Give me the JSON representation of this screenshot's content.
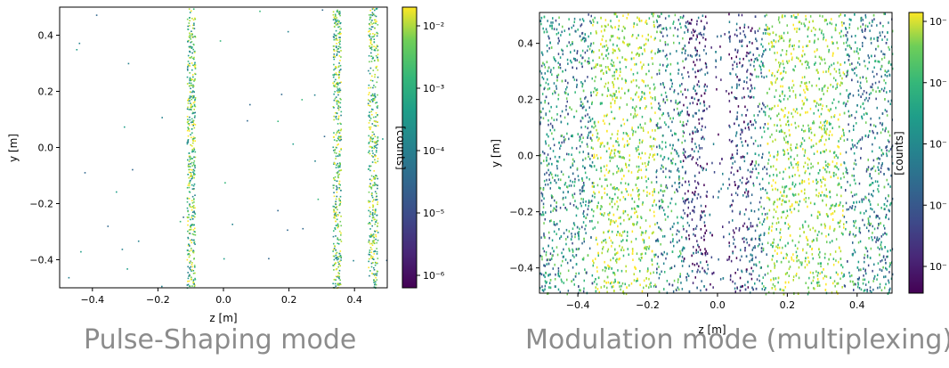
{
  "chart_data": [
    {
      "type": "heatmap",
      "caption": "Pulse-Shaping mode",
      "xlabel": "z [m]",
      "ylabel": "y [m]",
      "xlim": [
        -0.5,
        0.5
      ],
      "ylim": [
        -0.5,
        0.5
      ],
      "xticks": [
        "−0.4",
        "−0.2",
        "0.0",
        "0.2",
        "0.4"
      ],
      "xtick_values": [
        -0.4,
        -0.2,
        0.0,
        0.2,
        0.4
      ],
      "yticks": [
        "0.4",
        "0.2",
        "0.0",
        "−0.2",
        "−0.4"
      ],
      "ytick_values": [
        0.4,
        0.2,
        0.0,
        -0.2,
        -0.4
      ],
      "colorbar_label": "[counts]",
      "colorbar_ticks": [
        "10⁻²",
        "10⁻³",
        "10⁻⁴",
        "10⁻⁵",
        "10⁻⁶"
      ],
      "colorbar_exponents": [
        -2,
        -3,
        -4,
        -5,
        -6
      ],
      "colorbar_log_range": [
        -6.2,
        -1.7
      ],
      "colormap": "viridis",
      "stripes": [
        {
          "z_center": -0.1,
          "width": 0.025
        },
        {
          "z_center": 0.345,
          "width": 0.025
        },
        {
          "z_center": 0.455,
          "width": 0.03
        }
      ],
      "background_density": "sparse"
    },
    {
      "type": "heatmap",
      "caption": "Modulation mode (multiplexing)",
      "xlabel": "z [m]",
      "ylabel": "y [m]",
      "xlim": [
        -0.51,
        0.5
      ],
      "ylim": [
        -0.49,
        0.51
      ],
      "xticks": [
        "−0.4",
        "−0.2",
        "0.0",
        "0.2",
        "0.4"
      ],
      "xtick_values": [
        -0.4,
        -0.2,
        0.0,
        0.2,
        0.4
      ],
      "yticks": [
        "0.4",
        "0.2",
        "0.0",
        "−0.2",
        "−0.4"
      ],
      "ytick_values": [
        0.4,
        0.2,
        0.0,
        -0.2,
        -0.4
      ],
      "colorbar_label": "[counts]",
      "colorbar_ticks": [
        "10⁻",
        "10⁻",
        "10⁻",
        "10⁻",
        "10⁻"
      ],
      "colormap": "viridis",
      "bright_bands": [
        {
          "z_from": -0.36,
          "z_to": -0.18
        },
        {
          "z_from": 0.14,
          "z_to": 0.36
        }
      ],
      "background_density": "dense"
    }
  ]
}
